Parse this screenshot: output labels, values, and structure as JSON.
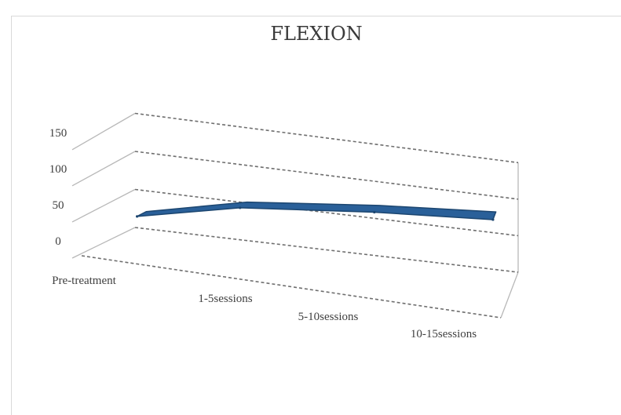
{
  "chart_data": {
    "type": "area",
    "title": "FLEXION",
    "categories": [
      "Pre-treatment",
      "1-5sessions",
      "5-10sessions",
      "10-15sessions"
    ],
    "series": [
      {
        "values": [
          35,
          70,
          88,
          102
        ]
      }
    ],
    "yticks": [
      "0",
      "50",
      "100",
      "150"
    ],
    "ylim": [
      0,
      150
    ],
    "grid": true,
    "legend": "none",
    "colors": {
      "series": "#2a6099",
      "series_edge": "#1c4670"
    }
  }
}
